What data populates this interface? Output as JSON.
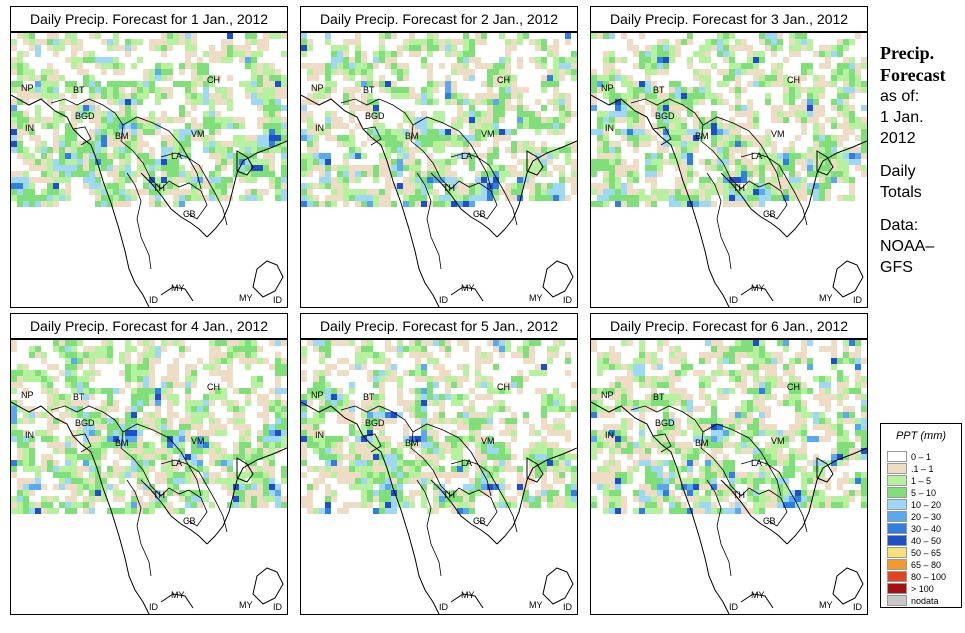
{
  "panels": [
    {
      "title": "Daily Precip. Forecast for  1 Jan., 2012",
      "pattern_seed": 1
    },
    {
      "title": "Daily Precip. Forecast for  2 Jan., 2012",
      "pattern_seed": 2
    },
    {
      "title": "Daily Precip. Forecast for  3 Jan., 2012",
      "pattern_seed": 3
    },
    {
      "title": "Daily Precip. Forecast for  4 Jan., 2012",
      "pattern_seed": 4
    },
    {
      "title": "Daily Precip. Forecast for  5 Jan., 2012",
      "pattern_seed": 5
    },
    {
      "title": "Daily Precip. Forecast for  6 Jan., 2012",
      "pattern_seed": 6
    }
  ],
  "country_labels": [
    "NP",
    "BT",
    "IN",
    "BGD",
    "CH",
    "BM",
    "VM",
    "LA",
    "TH",
    "CB",
    "MY",
    "ID",
    "MY",
    "ID"
  ],
  "side": {
    "heading_line1": "Precip.",
    "heading_line2": "Forecast",
    "asof_label": "as of:",
    "asof_date_line1": "1 Jan.",
    "asof_date_line2": "2012",
    "period_line1": "Daily",
    "period_line2": "Totals",
    "source_line1": "Data:",
    "source_line2": "NOAA–",
    "source_line3": "GFS"
  },
  "legend": {
    "title": "PPT (mm)",
    "items": [
      {
        "label": "0 – 1",
        "color": "#ffffff"
      },
      {
        "label": ".1 – 1",
        "color": "#eedcc4"
      },
      {
        "label": "1 – 5",
        "color": "#b6f29e"
      },
      {
        "label": "5 – 10",
        "color": "#7fe07a"
      },
      {
        "label": "10 – 20",
        "color": "#9fd8f5"
      },
      {
        "label": "20 – 30",
        "color": "#5aa8ee"
      },
      {
        "label": "30 – 40",
        "color": "#2e7fe0"
      },
      {
        "label": "40 – 50",
        "color": "#1f4fc8"
      },
      {
        "label": "50 – 65",
        "color": "#f7e27a"
      },
      {
        "label": "65 – 80",
        "color": "#f39a2b"
      },
      {
        "label": "80 – 100",
        "color": "#e0451f"
      },
      {
        "label": "> 100",
        "color": "#a51010"
      },
      {
        "label": "nodata",
        "color": "#c8c8c8"
      }
    ]
  }
}
